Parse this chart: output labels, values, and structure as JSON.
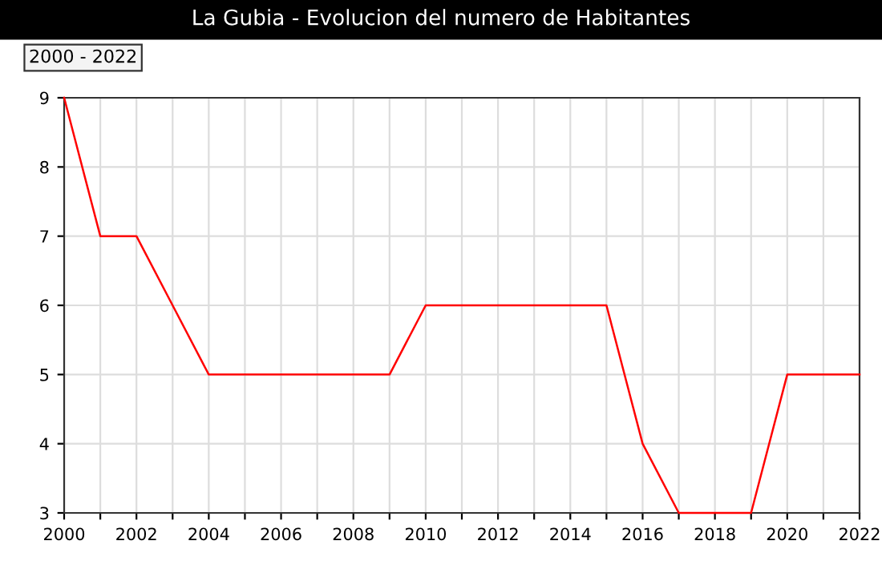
{
  "chart_data": {
    "type": "line",
    "title": "La Gubia - Evolucion del numero de Habitantes",
    "subtitle": "2000 - 2022",
    "x": [
      2000,
      2001,
      2002,
      2003,
      2004,
      2005,
      2006,
      2007,
      2008,
      2009,
      2010,
      2011,
      2012,
      2013,
      2014,
      2015,
      2016,
      2017,
      2018,
      2019,
      2020,
      2021,
      2022
    ],
    "series": [
      {
        "color": "#ff0000",
        "values": [
          9,
          7,
          7,
          6,
          5,
          5,
          5,
          5,
          5,
          5,
          6,
          6,
          6,
          6,
          6,
          6,
          4,
          3,
          3,
          3,
          5,
          5,
          5
        ]
      }
    ],
    "xlim": [
      2000,
      2022
    ],
    "ylim": [
      3,
      9
    ],
    "xticks": [
      2000,
      {
        "value": 2001,
        "label": null
      },
      2002,
      {
        "value": 2003,
        "label": null
      },
      2004,
      {
        "value": 2005,
        "label": null
      },
      2006,
      {
        "value": 2007,
        "label": null
      },
      2008,
      {
        "value": 2009,
        "label": null
      },
      2010,
      {
        "value": 2011,
        "label": null
      },
      2012,
      {
        "value": 2013,
        "label": null
      },
      2014,
      {
        "value": 2015,
        "label": null
      },
      2016,
      {
        "value": 2017,
        "label": null
      },
      2018,
      {
        "value": 2019,
        "label": null
      },
      2020,
      {
        "value": 2021,
        "label": null
      },
      2022
    ],
    "yticks": [
      3,
      4,
      5,
      6,
      7,
      8,
      9
    ],
    "grid": true,
    "legend": false,
    "marker": "none",
    "line_style": "solid"
  }
}
